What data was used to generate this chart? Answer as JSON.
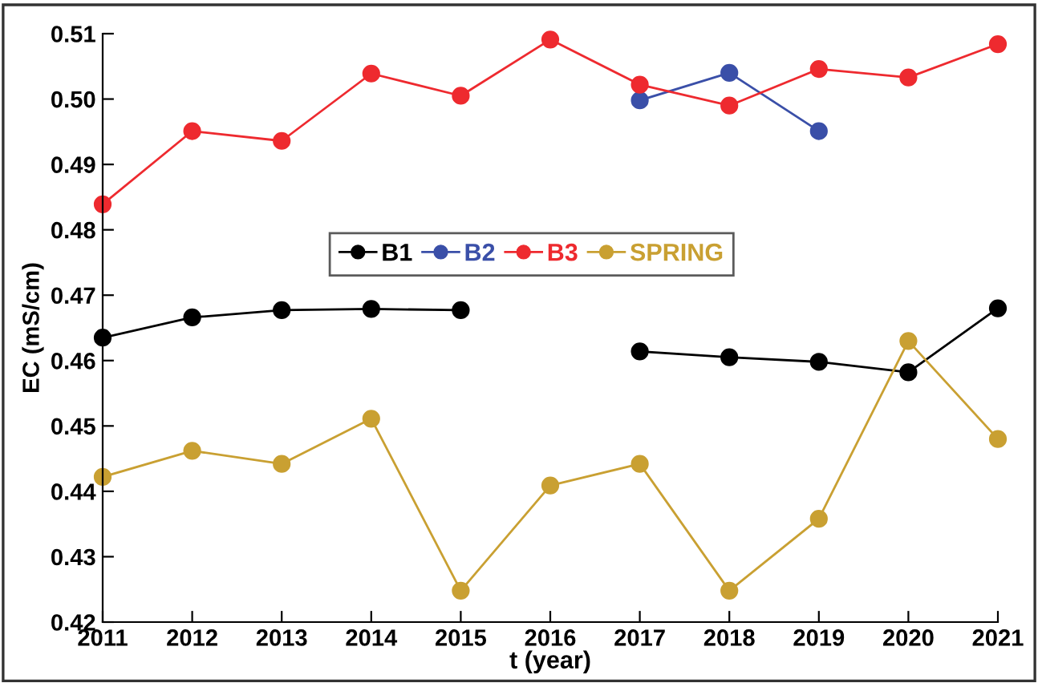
{
  "chart_data": {
    "type": "line",
    "xlabel": "t (year)",
    "ylabel": "EC (mS/cm)",
    "x": [
      2011,
      2012,
      2013,
      2014,
      2015,
      2016,
      2017,
      2018,
      2019,
      2020,
      2021
    ],
    "series": [
      {
        "name": "B1",
        "color": "#000000",
        "values": [
          0.4635,
          0.4666,
          0.4677,
          0.4679,
          0.4677,
          null,
          0.4614,
          0.4605,
          0.4598,
          0.4582,
          0.468
        ]
      },
      {
        "name": "B2",
        "color": "#3a4fa8",
        "values": [
          null,
          null,
          null,
          null,
          null,
          null,
          0.4998,
          0.504,
          0.4951,
          null,
          null
        ]
      },
      {
        "name": "B3",
        "color": "#ee2a2f",
        "values": [
          0.4839,
          0.4951,
          0.4936,
          0.5039,
          0.5005,
          0.5091,
          0.5022,
          0.499,
          0.5046,
          0.5033,
          0.5084
        ]
      },
      {
        "name": "SPRING",
        "color": "#c9a032",
        "values": [
          0.4422,
          0.4462,
          0.4442,
          0.4511,
          0.4248,
          0.4409,
          0.4442,
          0.4248,
          0.4358,
          0.463,
          0.448
        ]
      }
    ],
    "xlim": [
      2011,
      2021
    ],
    "xticks": [
      2011,
      2012,
      2013,
      2014,
      2015,
      2016,
      2017,
      2018,
      2019,
      2020,
      2021
    ],
    "ylim": [
      0.42,
      0.51
    ],
    "yticks": [
      {
        "value": 0.42,
        "label": "0.42"
      },
      {
        "value": 0.43,
        "label": "0.43"
      },
      {
        "value": 0.44,
        "label": "0.44"
      },
      {
        "value": 0.45,
        "label": "0.45"
      },
      {
        "value": 0.46,
        "label": "0.46"
      },
      {
        "value": 0.47,
        "label": "0.47"
      },
      {
        "value": 0.48,
        "label": "0.48"
      },
      {
        "value": 0.49,
        "label": "0.49"
      },
      {
        "value": 0.5,
        "label": "0.50"
      },
      {
        "value": 0.51,
        "label": "0.51"
      }
    ],
    "grid": false,
    "legend": "center left",
    "marker": "circle",
    "line_style": "solid"
  }
}
